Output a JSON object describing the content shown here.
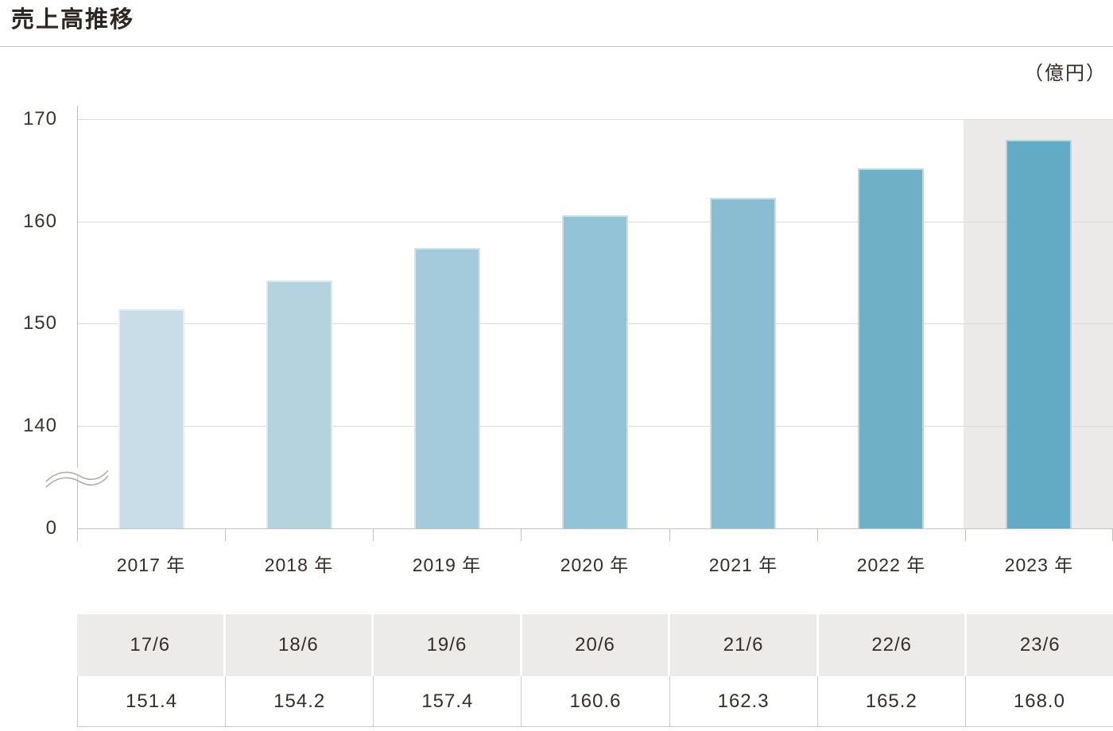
{
  "page": {
    "title": "売上高推移",
    "unit_label": "（億円）"
  },
  "chart_data": {
    "type": "bar",
    "title": "売上高推移",
    "unit": "億円",
    "categories": [
      "2017 年",
      "2018 年",
      "2019 年",
      "2020 年",
      "2021 年",
      "2022 年",
      "2023 年"
    ],
    "values": [
      151.4,
      154.2,
      157.4,
      160.6,
      162.3,
      165.2,
      168.0
    ],
    "bar_colors": [
      "#C9DDE8",
      "#B5D3DF",
      "#A4CBDB",
      "#93C3D6",
      "#8ABDD1",
      "#70B0C7",
      "#63AAC4"
    ],
    "y_ticks": [
      170,
      160,
      150,
      140,
      0
    ],
    "ylim": [
      140,
      170
    ],
    "axis_break_between": [
      0,
      140
    ],
    "grid": true,
    "legend": null,
    "highlight_category": "2023 年",
    "highlight_band_color": "#ECEAE8"
  },
  "table": {
    "headers": [
      "17/6",
      "18/6",
      "19/6",
      "20/6",
      "21/6",
      "22/6",
      "23/6"
    ],
    "values": [
      "151.4",
      "154.2",
      "157.4",
      "160.6",
      "162.3",
      "165.2",
      "168.0"
    ]
  }
}
